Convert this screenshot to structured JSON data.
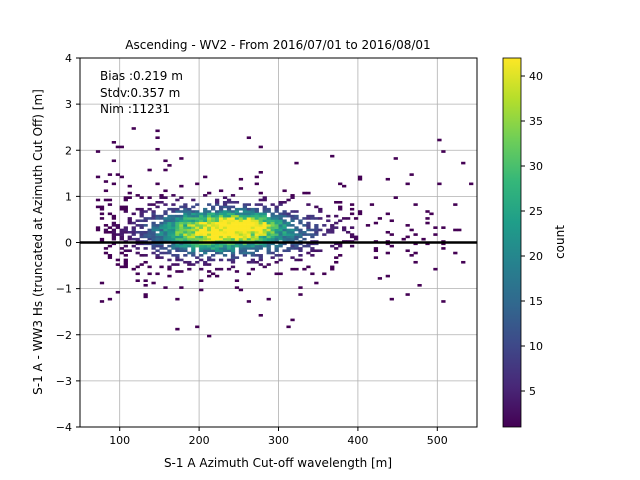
{
  "chart_data": {
    "type": "heatmap",
    "title": "Ascending - WV2 - From 2016/07/01 to 2016/08/01",
    "xlabel": "S-1 A Azimuth Cut-off wavelength [m]",
    "ylabel": "S-1 A - WW3 Hs (truncated at Azimuth Cut Off) [m]",
    "xlim": [
      50,
      550
    ],
    "ylim": [
      -4,
      4
    ],
    "xticks": [
      100,
      200,
      300,
      400,
      500
    ],
    "yticks": [
      -4,
      -3,
      -2,
      -1,
      0,
      1,
      2,
      3,
      4
    ],
    "grid": true,
    "stats": [
      "Bias :0.219 m",
      "Stdv:0.357 m",
      "Nim :11231"
    ],
    "reference_line": {
      "y": 0,
      "color": "#000000"
    },
    "colorbar": {
      "label": "count",
      "range": [
        1,
        42
      ],
      "ticks": [
        5,
        10,
        15,
        20,
        25,
        30,
        35,
        40
      ],
      "colormap": "viridis"
    },
    "density_model": {
      "bins": {
        "x_width": 5,
        "y_width": 0.05
      },
      "peak": {
        "x": 215,
        "y": 0.22,
        "count": 42
      },
      "spread": {
        "x_sigma": 55,
        "y_sigma": 0.33
      },
      "secondary_peak": {
        "x": 255,
        "y": 0.35,
        "count": 20
      },
      "extent": {
        "x": [
          70,
          550
        ],
        "y": [
          -2.1,
          2.5
        ]
      }
    }
  },
  "colors": {
    "viridis": [
      "#440154",
      "#482878",
      "#3e4989",
      "#31688e",
      "#26828e",
      "#1f9e89",
      "#35b779",
      "#6ece58",
      "#b5de2b",
      "#fde725"
    ]
  }
}
